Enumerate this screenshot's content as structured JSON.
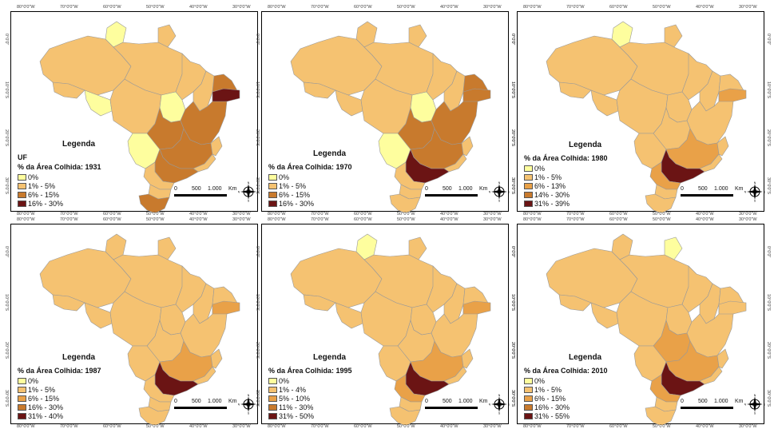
{
  "colors": {
    "c0": "#fefe9e",
    "c1": "#f5c271",
    "c2": "#e9a148",
    "c3": "#c87a2d",
    "c4": "#6b1414",
    "border": "#999999"
  },
  "coords": {
    "lon": [
      "80°0'0\"W",
      "70°0'0\"W",
      "60°0'0\"W",
      "50°0'0\"W",
      "40°0'0\"W",
      "30°0'0\"W"
    ],
    "lat": [
      "0°0'0\"",
      "10°0'0\"S",
      "20°0'0\"S",
      "30°0'0\"S"
    ]
  },
  "scale": {
    "zero": "0",
    "mid": "500",
    "max": "1.000",
    "unit": "Km"
  },
  "compass_letters": {
    "n": "N",
    "s": "S",
    "e": "E",
    "w": "W"
  },
  "panels": [
    {
      "legend_title": "Legenda",
      "uf_label": "UF",
      "subtitle": "% da Área Colhida: 1931",
      "classes": [
        "0%",
        "1% - 5%",
        "6% - 15%",
        "16% - 30%"
      ],
      "class_colors": [
        "c0",
        "c1",
        "c3",
        "c4"
      ],
      "fills": {
        "rr": "c0",
        "am": "c1",
        "ac": "c1",
        "ro": "c0",
        "pa": "c1",
        "ap": "c1",
        "ma": "c1",
        "to": "c0",
        "mt": "c1",
        "ms": "c0",
        "go": "c3",
        "mg": "c3",
        "sp": "c3",
        "pr": "c1",
        "sc": "c1",
        "rs": "c3",
        "ba": "c3",
        "pi": "c1",
        "ne": "c3",
        "ne2": "c4",
        "es": "c1",
        "rj": "c1"
      }
    },
    {
      "legend_title": "Legenda",
      "uf_label": "",
      "subtitle": "% da Área Colhida: 1970",
      "classes": [
        "0%",
        "1% - 5%",
        "6% - 15%",
        "16% - 30%"
      ],
      "class_colors": [
        "c0",
        "c1",
        "c3",
        "c4"
      ],
      "fills": {
        "rr": "c1",
        "am": "c1",
        "ac": "c1",
        "ro": "c1",
        "pa": "c1",
        "ap": "c1",
        "ma": "c1",
        "to": "c0",
        "mt": "c1",
        "ms": "c0",
        "go": "c3",
        "mg": "c3",
        "sp": "c4",
        "pr": "c1",
        "sc": "c1",
        "rs": "c1",
        "ba": "c3",
        "pi": "c1",
        "ne": "c3",
        "ne2": "c3",
        "es": "c1",
        "rj": "c1"
      }
    },
    {
      "legend_title": "Legenda",
      "uf_label": "",
      "subtitle": "% da Área Colhida: 1980",
      "classes": [
        "0%",
        "1% - 5%",
        "6% - 13%",
        "14% - 30%",
        "31% - 39%"
      ],
      "class_colors": [
        "c0",
        "c1",
        "c2",
        "c3",
        "c4"
      ],
      "fills": {
        "rr": "c0",
        "am": "c1",
        "ac": "c1",
        "ro": "c1",
        "pa": "c1",
        "ap": "c1",
        "ma": "c1",
        "to": "c1",
        "mt": "c1",
        "ms": "c1",
        "go": "c1",
        "mg": "c2",
        "sp": "c4",
        "pr": "c2",
        "sc": "c1",
        "rs": "c1",
        "ba": "c1",
        "pi": "c1",
        "ne": "c1",
        "ne2": "c2",
        "es": "c1",
        "rj": "c1"
      }
    },
    {
      "legend_title": "Legenda",
      "uf_label": "",
      "subtitle": "% da Área Colhida: 1987",
      "classes": [
        "0%",
        "1% - 5%",
        "6% - 15%",
        "16% - 30%",
        "31% - 40%"
      ],
      "class_colors": [
        "c0",
        "c1",
        "c2",
        "c3",
        "c4"
      ],
      "fills": {
        "rr": "c1",
        "am": "c1",
        "ac": "c1",
        "ro": "c1",
        "pa": "c1",
        "ap": "c1",
        "ma": "c1",
        "to": "c1",
        "mt": "c1",
        "ms": "c1",
        "go": "c1",
        "mg": "c2",
        "sp": "c4",
        "pr": "c1",
        "sc": "c1",
        "rs": "c1",
        "ba": "c1",
        "pi": "c1",
        "ne": "c1",
        "ne2": "c2",
        "es": "c1",
        "rj": "c1"
      }
    },
    {
      "legend_title": "Legenda",
      "uf_label": "",
      "subtitle": "% da Área Colhida: 1995",
      "classes": [
        "0%",
        "1% - 4%",
        "5% - 10%",
        "11% - 30%",
        "31% - 50%"
      ],
      "class_colors": [
        "c0",
        "c1",
        "c2",
        "c3",
        "c4"
      ],
      "fills": {
        "rr": "c0",
        "am": "c1",
        "ac": "c1",
        "ro": "c1",
        "pa": "c1",
        "ap": "c1",
        "ma": "c1",
        "to": "c1",
        "mt": "c1",
        "ms": "c1",
        "go": "c1",
        "mg": "c2",
        "sp": "c4",
        "pr": "c2",
        "sc": "c1",
        "rs": "c1",
        "ba": "c1",
        "pi": "c1",
        "ne": "c1",
        "ne2": "c2",
        "es": "c1",
        "rj": "c1"
      }
    },
    {
      "legend_title": "Legenda",
      "uf_label": "",
      "subtitle": "% da Área Colhida: 2010",
      "classes": [
        "0%",
        "1% - 5%",
        "6% - 15%",
        "16% - 30%",
        "31% - 55%"
      ],
      "class_colors": [
        "c0",
        "c1",
        "c2",
        "c3",
        "c4"
      ],
      "fills": {
        "rr": "c1",
        "am": "c1",
        "ac": "c1",
        "ro": "c1",
        "pa": "c1",
        "ap": "c0",
        "ma": "c1",
        "to": "c1",
        "mt": "c1",
        "ms": "c1",
        "go": "c2",
        "mg": "c2",
        "sp": "c4",
        "pr": "c2",
        "sc": "c1",
        "rs": "c1",
        "ba": "c1",
        "pi": "c1",
        "ne": "c1",
        "ne2": "c1",
        "es": "c1",
        "rj": "c1"
      }
    }
  ]
}
